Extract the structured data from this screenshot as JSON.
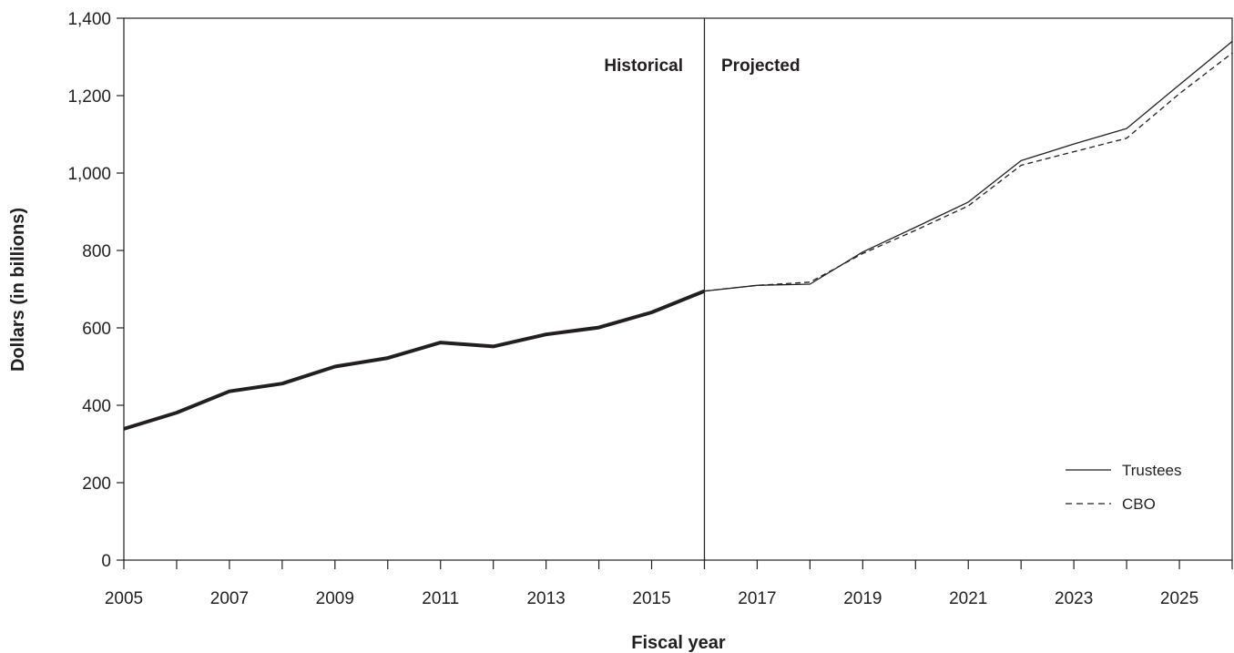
{
  "chart_data": {
    "type": "line",
    "xlabel": "Fiscal year",
    "ylabel": "Dollars (in billions)",
    "ylim": [
      0,
      1400
    ],
    "xlim": [
      2005,
      2026
    ],
    "yticks": [
      0,
      200,
      400,
      600,
      800,
      1000,
      1200,
      1400
    ],
    "ytick_labels": [
      "0",
      "200",
      "400",
      "600",
      "800",
      "1,000",
      "1,200",
      "1,400"
    ],
    "xtick_labels": [
      "2005",
      "2007",
      "2009",
      "2011",
      "2013",
      "2015",
      "2017",
      "2019",
      "2021",
      "2023",
      "2025"
    ],
    "divider_year": 2016,
    "region_labels": {
      "left": "Historical",
      "right": "Projected"
    },
    "legend_position": "bottom-right",
    "series": [
      {
        "name": "Historical",
        "style": "thick-solid",
        "x": [
          2005,
          2006,
          2007,
          2008,
          2009,
          2010,
          2011,
          2012,
          2013,
          2014,
          2015,
          2016
        ],
        "values": [
          339,
          381,
          436,
          456,
          500,
          522,
          562,
          552,
          583,
          601,
          640,
          695
        ]
      },
      {
        "name": "Trustees",
        "style": "solid",
        "x": [
          2016,
          2017,
          2018,
          2019,
          2020,
          2021,
          2022,
          2023,
          2024,
          2025,
          2026
        ],
        "values": [
          695,
          710,
          713,
          796,
          860,
          925,
          1032,
          1075,
          1115,
          1228,
          1340
        ]
      },
      {
        "name": "CBO",
        "style": "dashed",
        "x": [
          2016,
          2017,
          2018,
          2019,
          2020,
          2021,
          2022,
          2023,
          2024,
          2025,
          2026
        ],
        "values": [
          695,
          710,
          718,
          792,
          852,
          915,
          1020,
          1055,
          1090,
          1205,
          1310
        ]
      }
    ]
  }
}
